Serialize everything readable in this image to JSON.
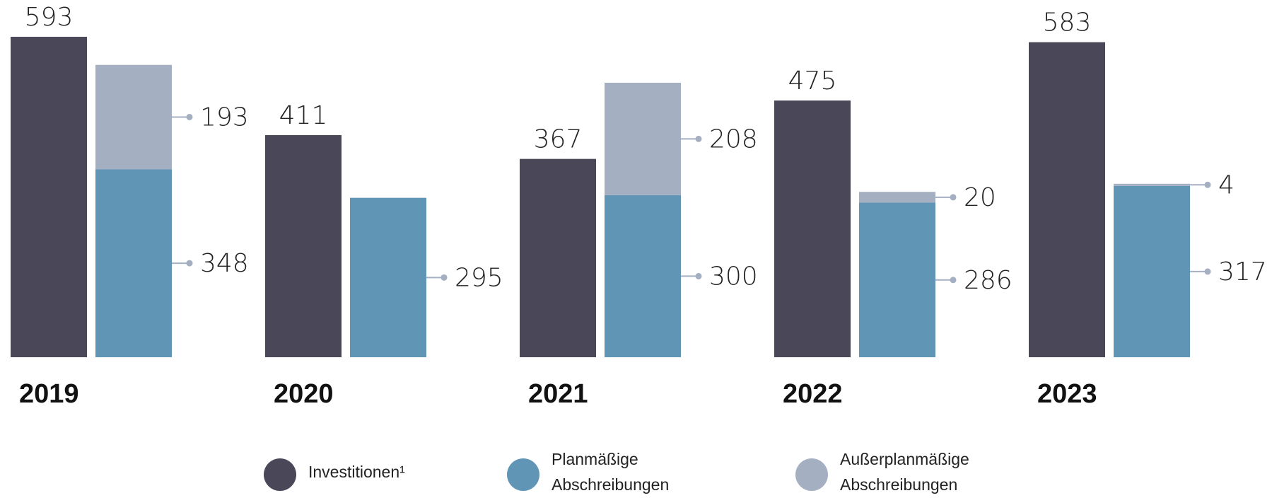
{
  "chart_data": {
    "type": "bar",
    "categories": [
      "2019",
      "2020",
      "2021",
      "2022",
      "2023"
    ],
    "series": [
      {
        "name": "Investitionen¹",
        "color": "#4a4858",
        "values": [
          593,
          411,
          367,
          475,
          583
        ]
      },
      {
        "name": "Planmäßige Abschreibungen",
        "color": "#6195b5",
        "values": [
          348,
          295,
          300,
          286,
          317
        ],
        "stack": "a"
      },
      {
        "name": "Außerplanmäßige Abschreibungen",
        "color": "#a5afc2",
        "values": [
          193,
          null,
          208,
          20,
          4
        ],
        "stack": "a"
      }
    ]
  }
}
